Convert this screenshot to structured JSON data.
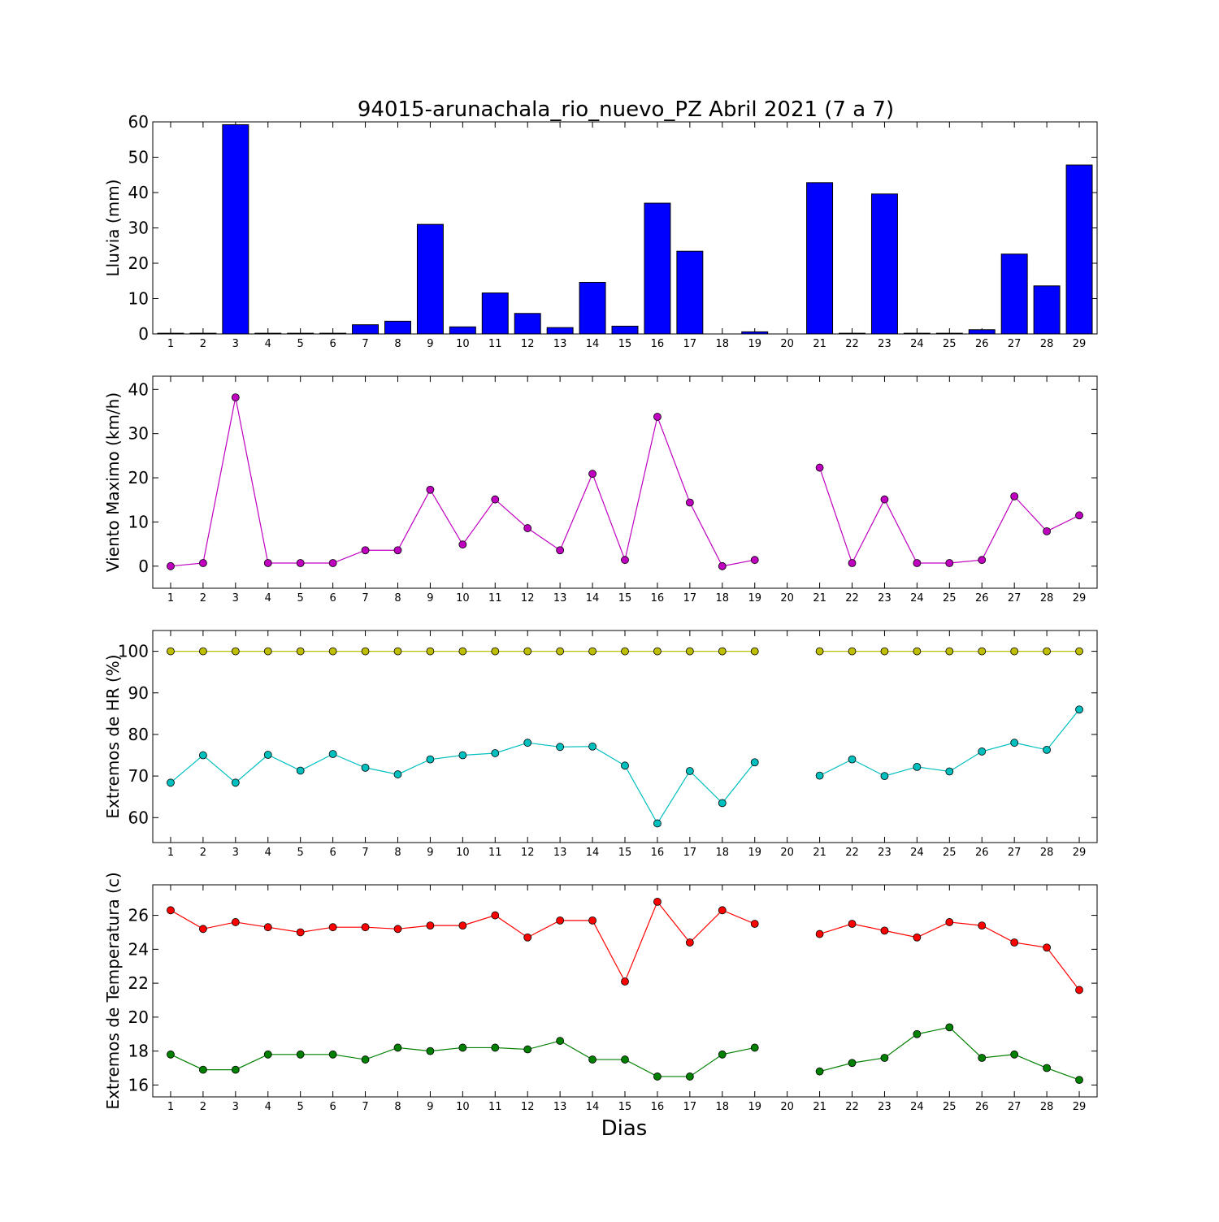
{
  "chart_data": {
    "title": "94015-arunachala_rio_nuevo_PZ Abril 2021  (7 a 7)",
    "xlabel": "Dias",
    "days": [
      "1",
      "2",
      "3",
      "4",
      "5",
      "6",
      "7",
      "8",
      "9",
      "10",
      "11",
      "12",
      "13",
      "14",
      "15",
      "16",
      "17",
      "18",
      "19",
      "20",
      "21",
      "22",
      "23",
      "24",
      "25",
      "26",
      "27",
      "28",
      "29"
    ],
    "panels": [
      {
        "type": "bar",
        "ylabel": "Lluvia (mm)",
        "ylim": [
          0,
          60
        ],
        "yticks": [
          0,
          10,
          20,
          30,
          40,
          50,
          60
        ],
        "series": [
          {
            "color": "#0000ff",
            "values": [
              0.2,
              0.2,
              59.2,
              0.2,
              0.2,
              0.2,
              2.6,
              3.6,
              31.0,
              2.0,
              11.6,
              5.8,
              1.8,
              14.6,
              2.2,
              37.0,
              23.4,
              0.0,
              0.6,
              0.0,
              42.8,
              0.2,
              39.6,
              0.2,
              0.2,
              1.2,
              22.6,
              13.6,
              47.8
            ]
          }
        ]
      },
      {
        "type": "line",
        "ylabel": "Viento Maximo (km/h)",
        "ylim": [
          -5,
          43
        ],
        "yticks": [
          0,
          10,
          20,
          30,
          40
        ],
        "series": [
          {
            "color": "#bf00bf",
            "values": [
              0.0,
              0.7,
              38.2,
              0.7,
              0.7,
              0.7,
              3.6,
              3.6,
              17.3,
              4.9,
              15.1,
              8.6,
              3.6,
              20.9,
              1.4,
              33.8,
              14.4,
              0.0,
              1.4,
              null,
              22.3,
              0.7,
              15.1,
              0.7,
              0.7,
              1.4,
              15.8,
              7.9,
              11.5
            ]
          }
        ]
      },
      {
        "type": "line",
        "ylabel": "Extremos de HR (%)",
        "ylim": [
          54,
          105
        ],
        "yticks": [
          60,
          70,
          80,
          90,
          100
        ],
        "series": [
          {
            "color": "#bfbf00",
            "values": [
              100,
              100,
              100,
              100,
              100,
              100,
              100,
              100,
              100,
              100,
              100,
              100,
              100,
              100,
              100,
              100,
              100,
              100,
              100,
              null,
              100,
              100,
              100,
              100,
              100,
              100,
              100,
              100,
              100
            ]
          },
          {
            "color": "#00bfbf",
            "values": [
              68.4,
              75.0,
              68.4,
              75.1,
              71.3,
              75.3,
              72.0,
              70.4,
              74.0,
              75.0,
              75.5,
              78.0,
              77.0,
              77.1,
              72.5,
              58.6,
              71.2,
              63.5,
              73.3,
              null,
              70.1,
              74.0,
              70.0,
              72.2,
              71.1,
              75.9,
              78.0,
              76.3,
              86.0
            ]
          }
        ]
      },
      {
        "type": "line",
        "ylabel": "Extremos de Temperatura (c)",
        "ylim": [
          15.3,
          27.8
        ],
        "yticks": [
          16,
          18,
          20,
          22,
          24,
          26
        ],
        "series": [
          {
            "color": "#ff0000",
            "values": [
              26.3,
              25.2,
              25.6,
              25.3,
              25.0,
              25.3,
              25.3,
              25.2,
              25.4,
              25.4,
              26.0,
              24.7,
              25.7,
              25.7,
              22.1,
              26.8,
              24.4,
              26.3,
              25.5,
              null,
              24.9,
              25.5,
              25.1,
              24.7,
              25.6,
              25.4,
              24.4,
              24.1,
              21.6
            ]
          },
          {
            "color": "#008000",
            "values": [
              17.8,
              16.9,
              16.9,
              17.8,
              17.8,
              17.8,
              17.5,
              18.2,
              18.0,
              18.2,
              18.2,
              18.1,
              18.6,
              17.5,
              17.5,
              16.5,
              16.5,
              17.8,
              18.2,
              null,
              16.8,
              17.3,
              17.6,
              19.0,
              19.4,
              17.6,
              17.8,
              17.0,
              16.3
            ]
          }
        ]
      }
    ]
  }
}
